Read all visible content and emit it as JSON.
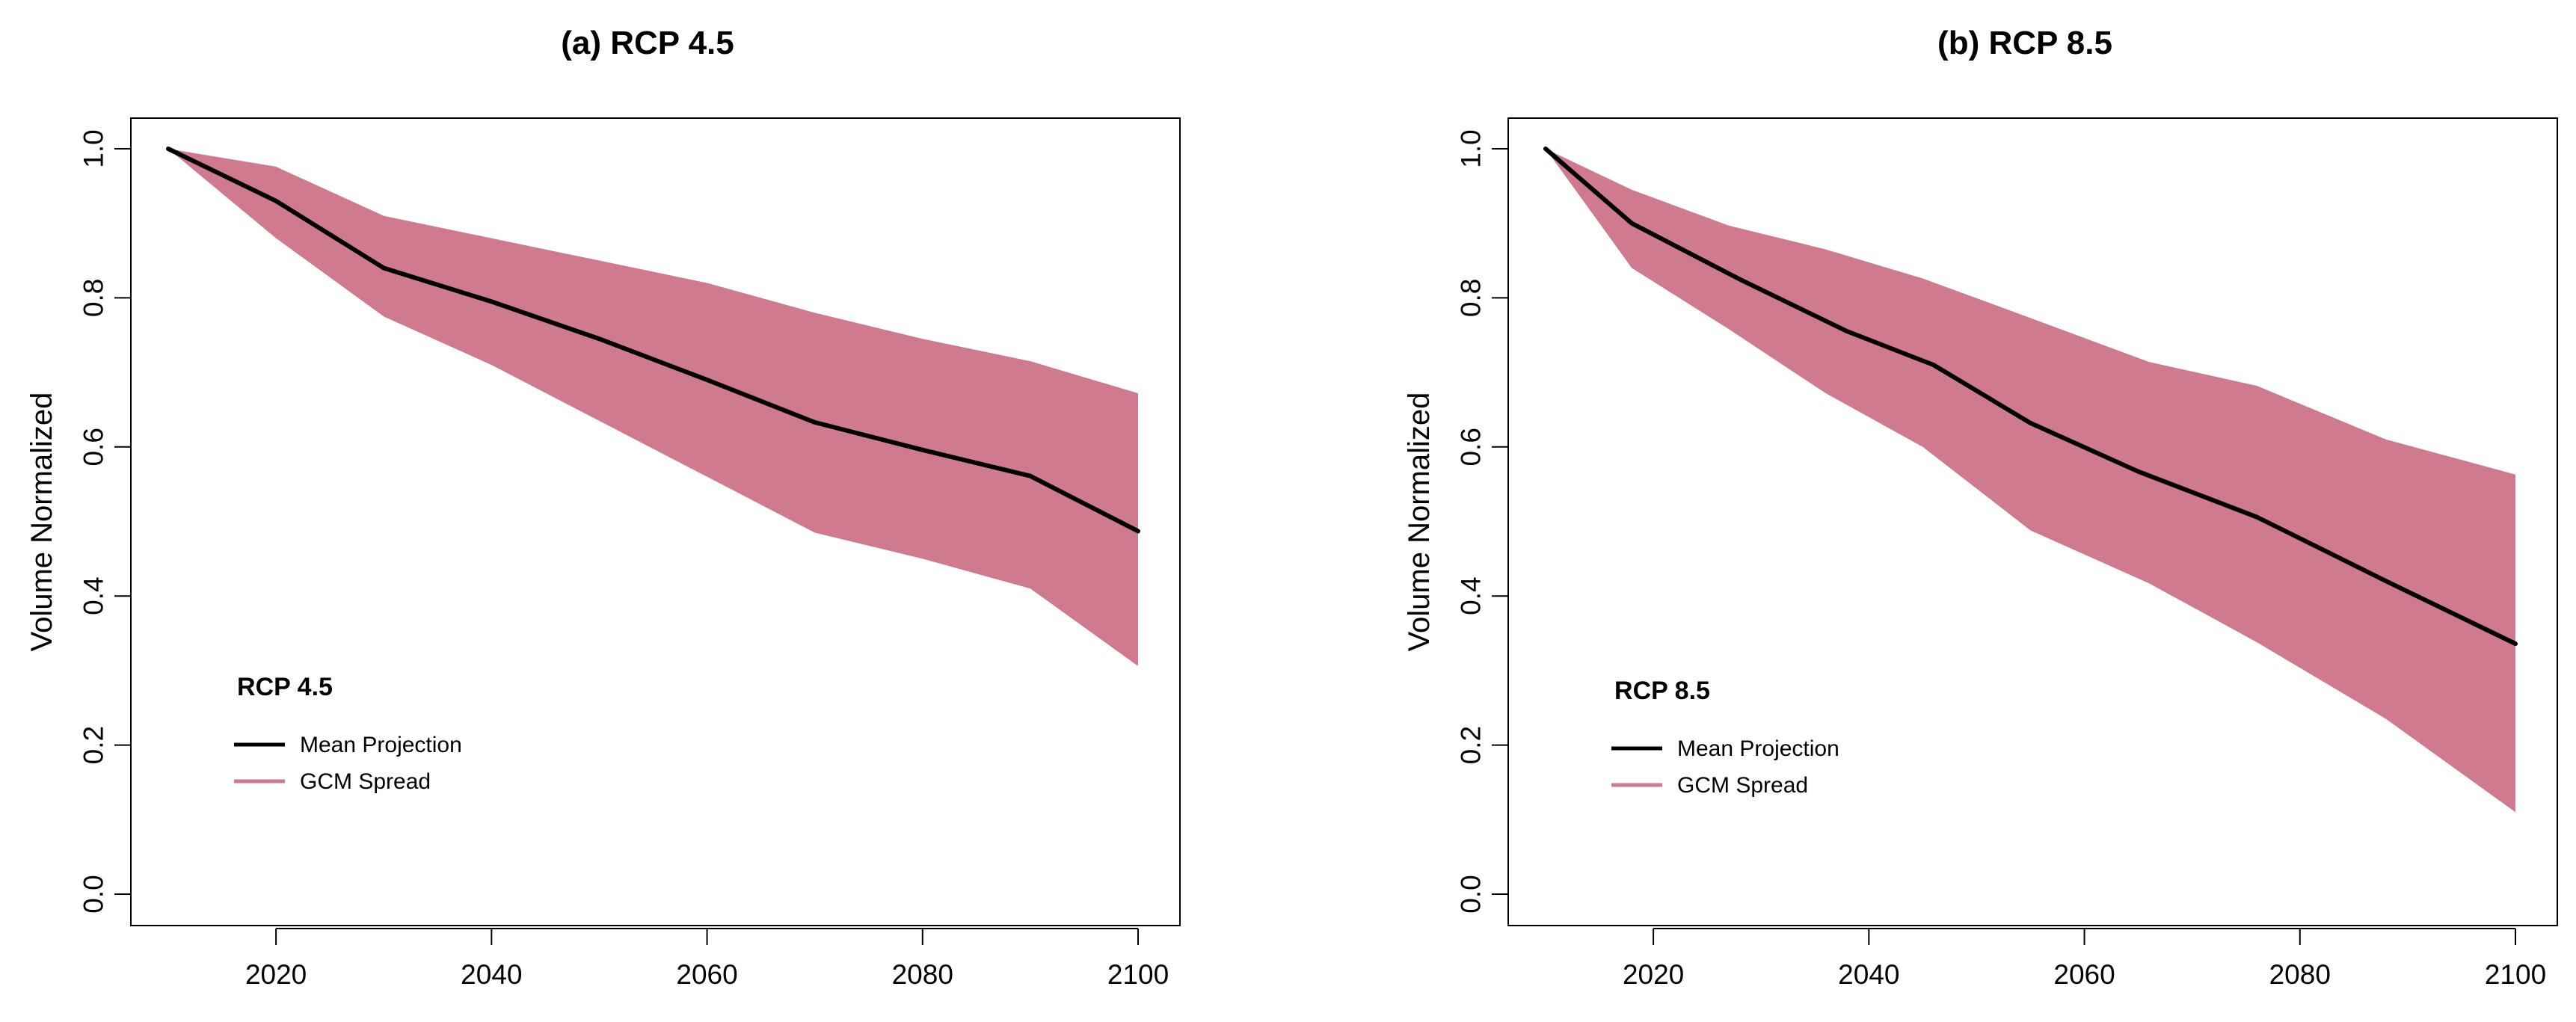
{
  "chart_data": [
    {
      "type": "area",
      "title": "(a) RCP 4.5",
      "xlabel": "",
      "ylabel": "Volume Normalized",
      "xlim": [
        2010,
        2100
      ],
      "ylim": [
        0.0,
        1.0
      ],
      "x_ticks": [
        2020,
        2040,
        2060,
        2080,
        2100
      ],
      "y_ticks": [
        0.0,
        0.2,
        0.4,
        0.6,
        0.8,
        1.0
      ],
      "y_tick_labels": [
        "0.0",
        "0.2",
        "0.4",
        "0.6",
        "0.8",
        "1.0"
      ],
      "colors": {
        "spread": "#cf7a8f",
        "mean": "#000000"
      },
      "legend": {
        "position": "bottom-left",
        "title": "RCP 4.5",
        "entries": [
          "Mean Projection",
          "GCM Spread"
        ]
      },
      "series": [
        {
          "name": "Mean Projection",
          "x": [
            2010,
            2020,
            2030,
            2040,
            2050,
            2060,
            2070,
            2080,
            2090,
            2100
          ],
          "values": [
            1.0,
            0.93,
            0.84,
            0.795,
            0.745,
            0.69,
            0.633,
            0.596,
            0.561,
            0.487
          ]
        },
        {
          "name": "GCM Spread",
          "x": [
            2010,
            2020,
            2030,
            2040,
            2050,
            2060,
            2070,
            2080,
            2090,
            2100
          ],
          "upper": [
            1.0,
            0.976,
            0.91,
            0.88,
            0.85,
            0.82,
            0.78,
            0.745,
            0.715,
            0.672
          ],
          "lower": [
            1.0,
            0.88,
            0.775,
            0.71,
            0.635,
            0.56,
            0.485,
            0.45,
            0.41,
            0.306
          ]
        }
      ]
    },
    {
      "type": "area",
      "title": "(b) RCP 8.5",
      "xlabel": "",
      "ylabel": "Volume Normalized",
      "xlim": [
        2010,
        2100
      ],
      "ylim": [
        0.0,
        1.0
      ],
      "x_ticks": [
        2020,
        2040,
        2060,
        2080,
        2100
      ],
      "y_ticks": [
        0.0,
        0.2,
        0.4,
        0.6,
        0.8,
        1.0
      ],
      "y_tick_labels": [
        "0.0",
        "0.2",
        "0.4",
        "0.6",
        "0.8",
        "1.0"
      ],
      "colors": {
        "spread": "#cf7a8f",
        "mean": "#000000"
      },
      "legend": {
        "position": "bottom-left",
        "title": "RCP 8.5",
        "entries": [
          "Mean Projection",
          "GCM Spread"
        ]
      },
      "series": [
        {
          "name": "Mean Projection",
          "x": [
            2010,
            2018,
            2028,
            2038,
            2046,
            2055,
            2065,
            2076,
            2088,
            2100
          ],
          "values": [
            1.0,
            0.9,
            0.825,
            0.755,
            0.71,
            0.632,
            0.567,
            0.506,
            0.42,
            0.336
          ]
        },
        {
          "name": "GCM Spread",
          "x": [
            2010,
            2018,
            2027,
            2036,
            2045,
            2055,
            2066,
            2076,
            2088,
            2100
          ],
          "upper": [
            1.0,
            0.945,
            0.897,
            0.865,
            0.826,
            0.773,
            0.714,
            0.682,
            0.61,
            0.563
          ],
          "lower": [
            1.0,
            0.84,
            0.758,
            0.672,
            0.6,
            0.488,
            0.417,
            0.338,
            0.235,
            0.11
          ]
        }
      ]
    }
  ]
}
